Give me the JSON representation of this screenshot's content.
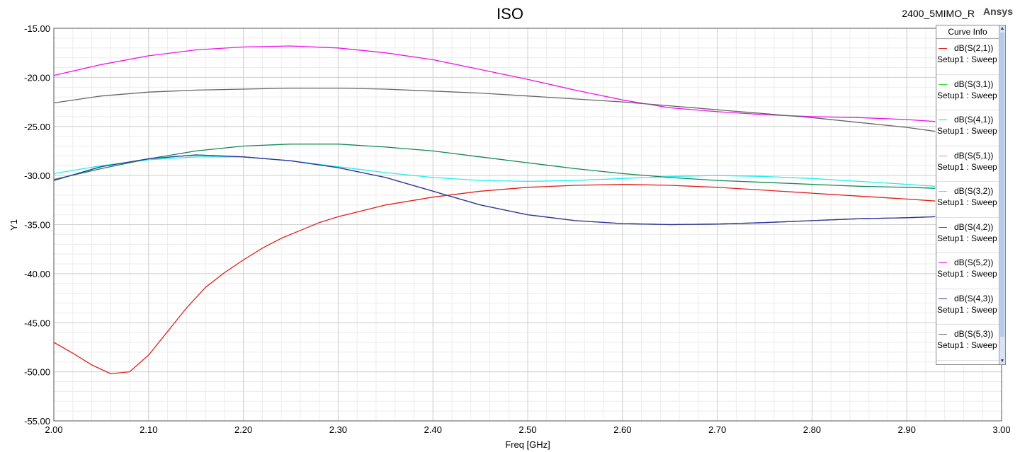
{
  "header": {
    "title": "ISO",
    "project": "2400_5MIMO_R",
    "brand": "Ansys"
  },
  "legend": {
    "title": "Curve Info",
    "items": [
      {
        "name": "dB(S(2,1))",
        "sub": "Setup1 : Sweep",
        "color": "#e0201c"
      },
      {
        "name": "dB(S(3,1))",
        "sub": "Setup1 : Sweep",
        "color": "#33dd33"
      },
      {
        "name": "dB(S(4,1))",
        "sub": "Setup1 : Sweep",
        "color": "#22bbdd"
      },
      {
        "name": "dB(S(5,1))",
        "sub": "Setup1 : Sweep",
        "color": "#d9a066"
      },
      {
        "name": "dB(S(3,2))",
        "sub": "Setup1 : Sweep",
        "color": "#22eeee"
      },
      {
        "name": "dB(S(4,2))",
        "sub": "Setup1 : Sweep",
        "color": "#118855"
      },
      {
        "name": "dB(S(5,2))",
        "sub": "Setup1 : Sweep",
        "color": "#ee11ee"
      },
      {
        "name": "dB(S(4,3))",
        "sub": "Setup1 : Sweep",
        "color": "#3333aa"
      },
      {
        "name": "dB(S(5,3))",
        "sub": "Setup1 : Sweep",
        "color": "#666666"
      }
    ]
  },
  "chart_data": {
    "type": "line",
    "title": "ISO",
    "xlabel": "Freq [GHz]",
    "ylabel": "Y1",
    "xlim": [
      2.0,
      3.0
    ],
    "ylim": [
      -55.0,
      -15.0
    ],
    "x_ticks": [
      "2.00",
      "2.10",
      "2.20",
      "2.30",
      "2.40",
      "2.50",
      "2.60",
      "2.70",
      "2.80",
      "2.90",
      "3.00"
    ],
    "y_ticks": [
      "-15.00",
      "-20.00",
      "-25.00",
      "-30.00",
      "-35.00",
      "-40.00",
      "-45.00",
      "-50.00",
      "-55.00"
    ],
    "grid": true,
    "legend_position": "right",
    "series": [
      {
        "name": "dB(S(2,1))",
        "color": "#e0201c",
        "x": [
          2.0,
          2.02,
          2.04,
          2.06,
          2.08,
          2.1,
          2.12,
          2.14,
          2.16,
          2.18,
          2.2,
          2.22,
          2.24,
          2.26,
          2.28,
          2.3,
          2.35,
          2.4,
          2.45,
          2.5,
          2.55,
          2.6,
          2.65,
          2.7,
          2.75,
          2.8,
          2.85,
          2.9,
          2.93
        ],
        "y": [
          -47.0,
          -48.1,
          -49.3,
          -50.2,
          -50.0,
          -48.3,
          -45.9,
          -43.5,
          -41.4,
          -39.9,
          -38.6,
          -37.4,
          -36.4,
          -35.6,
          -34.8,
          -34.2,
          -33.0,
          -32.2,
          -31.6,
          -31.2,
          -31.0,
          -30.9,
          -31.0,
          -31.2,
          -31.5,
          -31.8,
          -32.1,
          -32.4,
          -32.6
        ]
      },
      {
        "name": "dB(S(3,1))",
        "color": "#33dd33",
        "x": [
          2.0,
          2.05,
          2.1,
          2.15,
          2.2,
          2.25,
          2.3,
          2.35,
          2.4,
          2.45,
          2.5,
          2.55,
          2.6,
          2.65,
          2.7,
          2.75,
          2.8,
          2.85,
          2.9,
          2.93
        ],
        "y": [
          -30.5,
          -29.1,
          -28.3,
          -27.9,
          -28.1,
          -28.5,
          -29.2,
          -30.2,
          -31.6,
          -33.0,
          -34.0,
          -34.6,
          -34.9,
          -35.0,
          -34.95,
          -34.8,
          -34.6,
          -34.4,
          -34.3,
          -34.2
        ]
      },
      {
        "name": "dB(S(4,1))",
        "color": "#22bbdd",
        "x": [
          2.0,
          2.05,
          2.1,
          2.15,
          2.2,
          2.25,
          2.3,
          2.35,
          2.4,
          2.45,
          2.5,
          2.55,
          2.6,
          2.65,
          2.7,
          2.75,
          2.8,
          2.85,
          2.9,
          2.93
        ],
        "y": [
          -30.5,
          -29.1,
          -28.3,
          -27.9,
          -28.1,
          -28.5,
          -29.2,
          -30.2,
          -31.6,
          -33.0,
          -34.0,
          -34.6,
          -34.9,
          -35.0,
          -34.95,
          -34.8,
          -34.6,
          -34.4,
          -34.3,
          -34.2
        ]
      },
      {
        "name": "dB(S(5,1))",
        "color": "#d9a066",
        "x": [
          2.0,
          2.05,
          2.1,
          2.15,
          2.2,
          2.25,
          2.3,
          2.35,
          2.4,
          2.45,
          2.5,
          2.55,
          2.6,
          2.65,
          2.7,
          2.75,
          2.8,
          2.85,
          2.9,
          2.93
        ],
        "y": [
          -30.5,
          -29.1,
          -28.3,
          -27.9,
          -28.1,
          -28.5,
          -29.2,
          -30.2,
          -31.6,
          -33.0,
          -34.0,
          -34.6,
          -34.9,
          -35.0,
          -34.95,
          -34.8,
          -34.6,
          -34.4,
          -34.3,
          -34.2
        ]
      },
      {
        "name": "dB(S(3,2))",
        "color": "#22eeee",
        "x": [
          2.0,
          2.05,
          2.1,
          2.15,
          2.2,
          2.25,
          2.3,
          2.35,
          2.4,
          2.45,
          2.5,
          2.55,
          2.6,
          2.65,
          2.7,
          2.75,
          2.8,
          2.85,
          2.9,
          2.93
        ],
        "y": [
          -29.8,
          -29.0,
          -28.4,
          -28.1,
          -28.1,
          -28.5,
          -29.1,
          -29.7,
          -30.2,
          -30.5,
          -30.6,
          -30.5,
          -30.3,
          -30.1,
          -30.0,
          -30.1,
          -30.3,
          -30.6,
          -30.9,
          -31.1
        ]
      },
      {
        "name": "dB(S(4,2))",
        "color": "#118855",
        "x": [
          2.0,
          2.05,
          2.1,
          2.15,
          2.2,
          2.25,
          2.3,
          2.35,
          2.4,
          2.45,
          2.5,
          2.55,
          2.6,
          2.65,
          2.7,
          2.75,
          2.8,
          2.85,
          2.9,
          2.93
        ],
        "y": [
          -30.4,
          -29.3,
          -28.3,
          -27.5,
          -27.0,
          -26.8,
          -26.8,
          -27.1,
          -27.5,
          -28.1,
          -28.7,
          -29.3,
          -29.8,
          -30.2,
          -30.5,
          -30.7,
          -30.9,
          -31.1,
          -31.2,
          -31.3
        ]
      },
      {
        "name": "dB(S(5,2))",
        "color": "#ee11ee",
        "x": [
          2.0,
          2.05,
          2.1,
          2.15,
          2.2,
          2.25,
          2.3,
          2.35,
          2.4,
          2.45,
          2.5,
          2.55,
          2.6,
          2.65,
          2.7,
          2.75,
          2.8,
          2.85,
          2.9,
          2.93
        ],
        "y": [
          -19.8,
          -18.7,
          -17.8,
          -17.2,
          -16.9,
          -16.8,
          -17.0,
          -17.5,
          -18.2,
          -19.2,
          -20.2,
          -21.3,
          -22.3,
          -23.1,
          -23.5,
          -23.8,
          -24.0,
          -24.1,
          -24.3,
          -24.5
        ]
      },
      {
        "name": "dB(S(4,3))",
        "color": "#3333aa",
        "x": [
          2.0,
          2.05,
          2.1,
          2.15,
          2.2,
          2.25,
          2.3,
          2.35,
          2.4,
          2.45,
          2.5,
          2.55,
          2.6,
          2.65,
          2.7,
          2.75,
          2.8,
          2.85,
          2.9,
          2.93
        ],
        "y": [
          -30.5,
          -29.1,
          -28.3,
          -27.9,
          -28.1,
          -28.5,
          -29.2,
          -30.2,
          -31.6,
          -33.0,
          -34.0,
          -34.6,
          -34.9,
          -35.0,
          -34.95,
          -34.8,
          -34.6,
          -34.4,
          -34.3,
          -34.2
        ]
      },
      {
        "name": "dB(S(5,3))",
        "color": "#666666",
        "x": [
          2.0,
          2.05,
          2.1,
          2.15,
          2.2,
          2.25,
          2.3,
          2.35,
          2.4,
          2.45,
          2.5,
          2.55,
          2.6,
          2.65,
          2.7,
          2.75,
          2.8,
          2.85,
          2.9,
          2.93
        ],
        "y": [
          -22.6,
          -21.9,
          -21.5,
          -21.3,
          -21.2,
          -21.1,
          -21.1,
          -21.2,
          -21.4,
          -21.6,
          -21.9,
          -22.2,
          -22.5,
          -22.9,
          -23.3,
          -23.7,
          -24.1,
          -24.6,
          -25.1,
          -25.5
        ]
      }
    ]
  }
}
